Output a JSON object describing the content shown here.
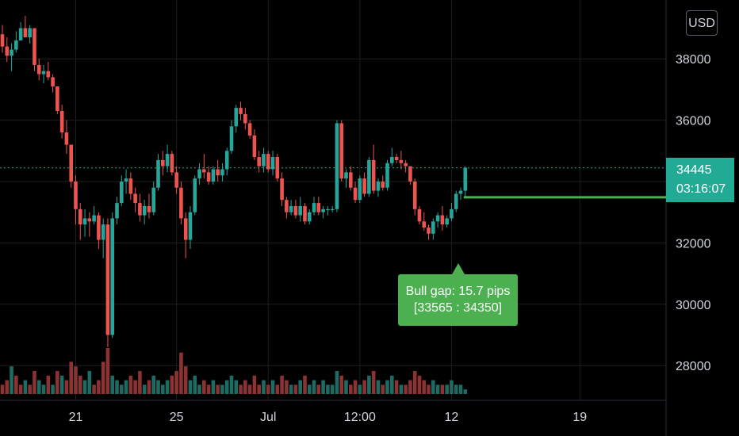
{
  "currency": "USD",
  "price_tag": {
    "price": "34445",
    "countdown": "03:16:07"
  },
  "gap_label": {
    "line1": "Bull gap: 15.7 pips",
    "line2": "[33565 : 34350]"
  },
  "colors": {
    "up": "#26a69a",
    "down": "#ef5350",
    "volume_up": "#1e6b63",
    "volume_down": "#8b3232",
    "gap_line": "#4caf50",
    "price_tag": "#22ab94",
    "grid": "#1f1f1f"
  },
  "chart_data": {
    "type": "candlestick",
    "title": "",
    "y_ticks": [
      38000,
      36000,
      32000,
      30000,
      28000
    ],
    "x_ticks": [
      {
        "label": "21",
        "bar": 16
      },
      {
        "label": "25",
        "bar": 38
      },
      {
        "label": "Jul",
        "bar": 58
      },
      {
        "label": "12:00",
        "bar": 78
      },
      {
        "label": "12",
        "bar": 98
      },
      {
        "label": "19",
        "bar": 126
      }
    ],
    "ylim": [
      27000,
      39500
    ],
    "last_price": 34445,
    "bull_gap": {
      "low": 33565,
      "high": 34350,
      "pips": 15.7
    },
    "candles": [
      [
        38800,
        39100,
        38200,
        38400
      ],
      [
        38400,
        38700,
        37900,
        38100
      ],
      [
        38100,
        38500,
        37600,
        38300
      ],
      [
        38300,
        38900,
        38200,
        38600
      ],
      [
        38600,
        39200,
        38600,
        39000
      ],
      [
        39000,
        39400,
        38800,
        38700
      ],
      [
        38700,
        39100,
        38500,
        39000
      ],
      [
        39000,
        39000,
        37600,
        37800
      ],
      [
        37800,
        38000,
        37300,
        37500
      ],
      [
        37500,
        37800,
        37200,
        37600
      ],
      [
        37600,
        37900,
        37300,
        37400
      ],
      [
        37400,
        37500,
        36900,
        37100
      ],
      [
        37100,
        37100,
        36200,
        36300
      ],
      [
        36300,
        36500,
        35400,
        35600
      ],
      [
        35600,
        36000,
        34900,
        35200
      ],
      [
        35200,
        35200,
        33800,
        34000
      ],
      [
        34000,
        34200,
        32600,
        33100
      ],
      [
        33100,
        33300,
        32100,
        32600
      ],
      [
        32600,
        33100,
        32200,
        32800
      ],
      [
        32800,
        33000,
        32200,
        32700
      ],
      [
        32700,
        33200,
        32600,
        32900
      ],
      [
        32900,
        33000,
        31800,
        32100
      ],
      [
        32100,
        32800,
        31500,
        32600
      ],
      [
        32600,
        32800,
        28600,
        29000
      ],
      [
        29000,
        33000,
        28900,
        32800
      ],
      [
        32800,
        33500,
        32600,
        33300
      ],
      [
        33300,
        34200,
        33200,
        34000
      ],
      [
        34000,
        34400,
        33600,
        34100
      ],
      [
        34100,
        34300,
        33400,
        33600
      ],
      [
        33600,
        33800,
        33000,
        33300
      ],
      [
        33300,
        33600,
        32700,
        32900
      ],
      [
        32900,
        33400,
        32600,
        33200
      ],
      [
        33200,
        33600,
        32800,
        33000
      ],
      [
        33000,
        34000,
        32900,
        33800
      ],
      [
        33800,
        34900,
        33700,
        34700
      ],
      [
        34700,
        35000,
        34200,
        34500
      ],
      [
        34500,
        35200,
        34300,
        34900
      ],
      [
        34900,
        35000,
        34200,
        34300
      ],
      [
        34300,
        34500,
        33600,
        33800
      ],
      [
        33800,
        34000,
        32600,
        32800
      ],
      [
        32800,
        33000,
        31500,
        32100
      ],
      [
        32100,
        33200,
        31800,
        33000
      ],
      [
        33000,
        34200,
        32900,
        34100
      ],
      [
        34100,
        34600,
        33900,
        34400
      ],
      [
        34400,
        34900,
        34100,
        34300
      ],
      [
        34300,
        34500,
        33900,
        34000
      ],
      [
        34000,
        34500,
        33900,
        34400
      ],
      [
        34400,
        34700,
        34000,
        34200
      ],
      [
        34200,
        34600,
        34000,
        34400
      ],
      [
        34400,
        35100,
        34200,
        35000
      ],
      [
        35000,
        36000,
        34900,
        35800
      ],
      [
        35800,
        36500,
        35600,
        36400
      ],
      [
        36400,
        36600,
        36000,
        36200
      ],
      [
        36200,
        36400,
        35700,
        35900
      ],
      [
        35900,
        36000,
        35400,
        35500
      ],
      [
        35500,
        35700,
        34700,
        34800
      ],
      [
        34800,
        35000,
        34300,
        34500
      ],
      [
        34500,
        35100,
        34300,
        34900
      ],
      [
        34900,
        35000,
        34300,
        34400
      ],
      [
        34400,
        35000,
        34200,
        34800
      ],
      [
        34800,
        34900,
        34000,
        34100
      ],
      [
        34100,
        34300,
        33200,
        33400
      ],
      [
        33400,
        33500,
        32800,
        33000
      ],
      [
        33000,
        33400,
        32900,
        33200
      ],
      [
        33200,
        33400,
        32800,
        32900
      ],
      [
        32900,
        33500,
        32700,
        33200
      ],
      [
        33200,
        33300,
        32600,
        32700
      ],
      [
        32700,
        33100,
        32600,
        33000
      ],
      [
        33000,
        33500,
        32900,
        33300
      ],
      [
        33300,
        33500,
        32900,
        33000
      ],
      [
        33000,
        33200,
        32800,
        33100
      ],
      [
        33100,
        33200,
        32900,
        33100
      ],
      [
        33100,
        33200,
        33000,
        33100
      ],
      [
        33100,
        36000,
        33000,
        35900
      ],
      [
        35900,
        36000,
        34000,
        34100
      ],
      [
        34100,
        34400,
        33800,
        34300
      ],
      [
        34300,
        34500,
        33700,
        33800
      ],
      [
        33800,
        34000,
        33300,
        33400
      ],
      [
        33400,
        34200,
        33300,
        34100
      ],
      [
        34100,
        34300,
        33500,
        33600
      ],
      [
        33600,
        34800,
        33500,
        34700
      ],
      [
        34700,
        35200,
        33600,
        33700
      ],
      [
        33700,
        34100,
        33500,
        34000
      ],
      [
        34000,
        34200,
        33700,
        33800
      ],
      [
        33800,
        34700,
        33700,
        34600
      ],
      [
        34600,
        35100,
        34500,
        34800
      ],
      [
        34800,
        34900,
        34600,
        34700
      ],
      [
        34700,
        35000,
        34400,
        34600
      ],
      [
        34600,
        34700,
        34300,
        34500
      ],
      [
        34500,
        34500,
        33900,
        34000
      ],
      [
        34000,
        34100,
        32900,
        33100
      ],
      [
        33100,
        33200,
        32600,
        32700
      ],
      [
        32700,
        33000,
        32400,
        32500
      ],
      [
        32500,
        32600,
        32100,
        32300
      ],
      [
        32300,
        32800,
        32100,
        32700
      ],
      [
        32700,
        33000,
        32500,
        32900
      ],
      [
        32900,
        33200,
        32400,
        32600
      ],
      [
        32600,
        32900,
        32500,
        32800
      ],
      [
        32800,
        33300,
        32700,
        33100
      ],
      [
        33100,
        33700,
        33000,
        33600
      ],
      [
        33600,
        33800,
        33400,
        33700
      ],
      [
        33700,
        34500,
        33500,
        34450
      ]
    ],
    "volumes": [
      [
        2,
        0
      ],
      [
        3,
        0
      ],
      [
        6,
        1
      ],
      [
        4,
        0
      ],
      [
        2,
        0
      ],
      [
        3,
        1
      ],
      [
        2,
        0
      ],
      [
        5,
        0
      ],
      [
        3,
        1
      ],
      [
        2,
        1
      ],
      [
        4,
        0
      ],
      [
        2,
        1
      ],
      [
        5,
        0
      ],
      [
        4,
        1
      ],
      [
        3,
        0
      ],
      [
        7,
        0
      ],
      [
        6,
        0
      ],
      [
        4,
        0
      ],
      [
        3,
        1
      ],
      [
        5,
        1
      ],
      [
        2,
        0
      ],
      [
        3,
        0
      ],
      [
        7,
        0
      ],
      [
        10,
        0
      ],
      [
        4,
        1
      ],
      [
        3,
        1
      ],
      [
        2,
        1
      ],
      [
        3,
        1
      ],
      [
        4,
        0
      ],
      [
        3,
        0
      ],
      [
        5,
        0
      ],
      [
        2,
        1
      ],
      [
        3,
        0
      ],
      [
        4,
        1
      ],
      [
        3,
        1
      ],
      [
        2,
        1
      ],
      [
        3,
        1
      ],
      [
        4,
        0
      ],
      [
        5,
        0
      ],
      [
        9,
        0
      ],
      [
        6,
        0
      ],
      [
        3,
        1
      ],
      [
        4,
        1
      ],
      [
        2,
        1
      ],
      [
        3,
        0
      ],
      [
        2,
        0
      ],
      [
        3,
        1
      ],
      [
        2,
        0
      ],
      [
        2,
        1
      ],
      [
        3,
        1
      ],
      [
        4,
        1
      ],
      [
        3,
        1
      ],
      [
        2,
        0
      ],
      [
        3,
        0
      ],
      [
        2,
        0
      ],
      [
        4,
        0
      ],
      [
        2,
        0
      ],
      [
        3,
        1
      ],
      [
        2,
        0
      ],
      [
        3,
        1
      ],
      [
        2,
        0
      ],
      [
        4,
        0
      ],
      [
        3,
        0
      ],
      [
        2,
        1
      ],
      [
        2,
        0
      ],
      [
        3,
        1
      ],
      [
        4,
        0
      ],
      [
        2,
        1
      ],
      [
        3,
        1
      ],
      [
        2,
        0
      ],
      [
        3,
        1
      ],
      [
        2,
        1
      ],
      [
        2,
        1
      ],
      [
        5,
        1
      ],
      [
        4,
        0
      ],
      [
        3,
        1
      ],
      [
        2,
        0
      ],
      [
        3,
        0
      ],
      [
        2,
        1
      ],
      [
        3,
        0
      ],
      [
        4,
        1
      ],
      [
        5,
        0
      ],
      [
        3,
        1
      ],
      [
        2,
        0
      ],
      [
        3,
        1
      ],
      [
        4,
        1
      ],
      [
        3,
        0
      ],
      [
        2,
        1
      ],
      [
        2,
        0
      ],
      [
        3,
        0
      ],
      [
        5,
        0
      ],
      [
        4,
        0
      ],
      [
        3,
        0
      ],
      [
        2,
        0
      ],
      [
        3,
        1
      ],
      [
        2,
        1
      ],
      [
        2,
        0
      ],
      [
        2,
        1
      ],
      [
        3,
        1
      ],
      [
        2,
        1
      ],
      [
        2,
        1
      ],
      [
        1,
        1
      ]
    ]
  }
}
